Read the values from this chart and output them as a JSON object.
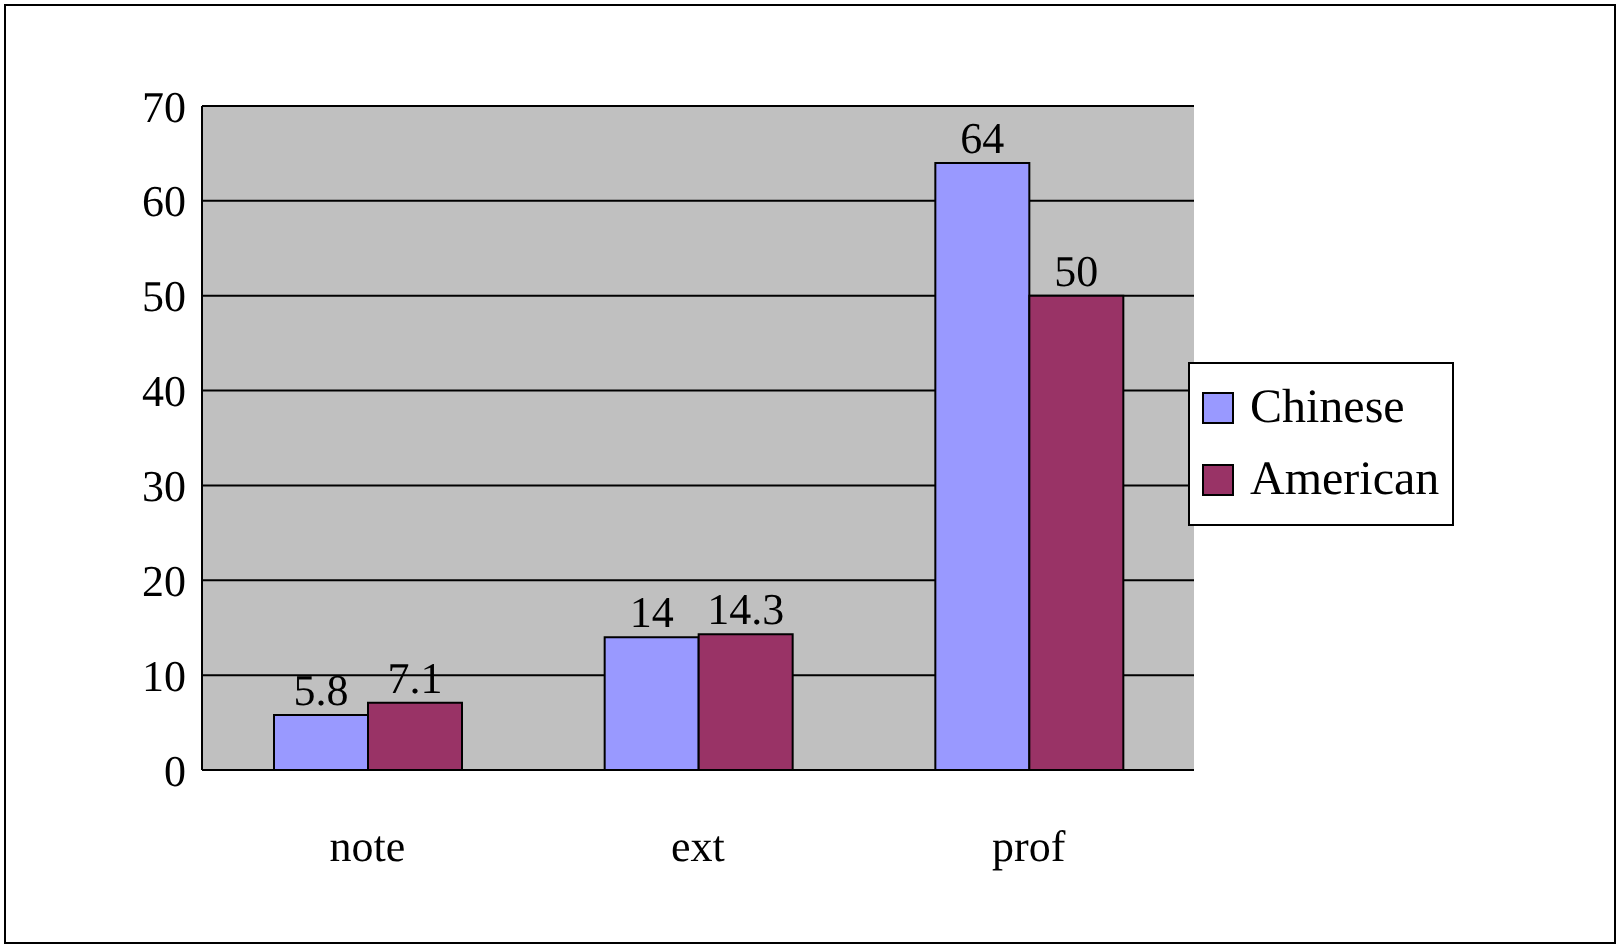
{
  "chart_data": {
    "type": "bar",
    "categories": [
      "note",
      "ext",
      "prof"
    ],
    "series": [
      {
        "name": "Chinese",
        "color": "#9999ff",
        "values": [
          5.8,
          14,
          64
        ]
      },
      {
        "name": "American",
        "color": "#993366",
        "values": [
          7.1,
          14.3,
          50
        ]
      }
    ],
    "ylim": [
      0,
      70
    ],
    "yticks": [
      0,
      10,
      20,
      30,
      40,
      50,
      60,
      70
    ],
    "grid": "y",
    "legend": "right",
    "data_labels": true
  }
}
